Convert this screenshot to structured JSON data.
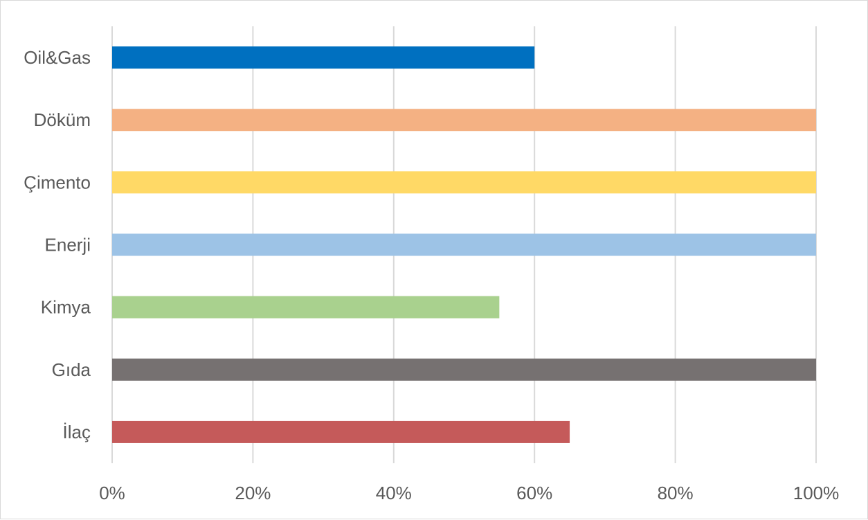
{
  "chart_data": {
    "type": "bar",
    "orientation": "horizontal",
    "title": "",
    "xlabel": "",
    "ylabel": "",
    "categories": [
      "Oil&Gas",
      "Döküm",
      "Çimento",
      "Enerji",
      "Kimya",
      "Gıda",
      "İlaç"
    ],
    "values": [
      0.6,
      1.0,
      1.0,
      1.0,
      0.55,
      1.0,
      0.65
    ],
    "colors": [
      "#0070c0",
      "#f4b183",
      "#ffd966",
      "#9dc3e6",
      "#a9d18e",
      "#767171",
      "#c55a5a"
    ],
    "xlim": [
      0,
      1
    ],
    "x_ticks": [
      0,
      0.2,
      0.4,
      0.6,
      0.8,
      1.0
    ],
    "x_tick_labels": [
      "0%",
      "20%",
      "40%",
      "60%",
      "80%",
      "100%"
    ],
    "grid": true,
    "gridline_color": "#d9d9d9",
    "legend": "none"
  }
}
